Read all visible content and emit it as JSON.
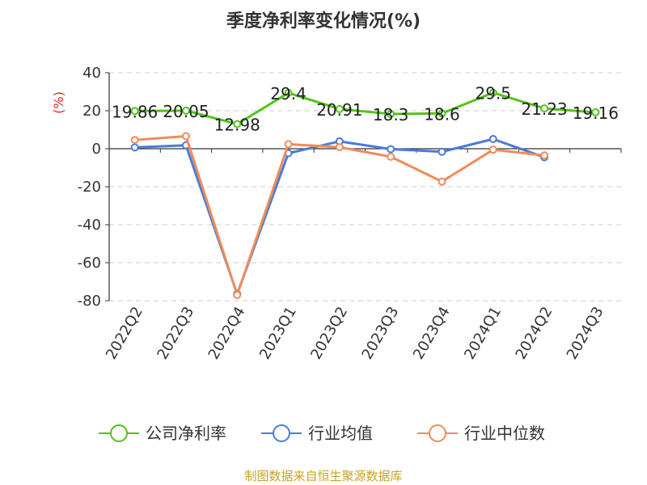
{
  "chart_data": {
    "type": "line",
    "title": "季度净利率变化情况(%)",
    "ylabel": "(%)",
    "categories": [
      "2022Q2",
      "2022Q3",
      "2022Q4",
      "2023Q1",
      "2023Q2",
      "2023Q3",
      "2023Q4",
      "2024Q1",
      "2024Q2",
      "2024Q3"
    ],
    "ylim": [
      -80,
      40
    ],
    "yticks": [
      40,
      20,
      0,
      -20,
      -40,
      -60,
      -80
    ],
    "grid": true,
    "legend_position": "bottom",
    "series": [
      {
        "name": "公司净利率",
        "color": "#52c41a",
        "values": [
          19.86,
          20.05,
          12.98,
          29.4,
          20.91,
          18.3,
          18.6,
          29.5,
          21.23,
          19.16
        ],
        "labels": [
          "19.86",
          "20.05",
          "12.98",
          "29.4",
          "20.91",
          "18.3",
          "18.6",
          "29.5",
          "21.23",
          "19.16"
        ]
      },
      {
        "name": "行业均值",
        "color": "#4a7bd9",
        "values": [
          0.7,
          1.8,
          -76.5,
          -2.4,
          3.9,
          -0.2,
          -1.6,
          5.1,
          -4.5,
          null
        ]
      },
      {
        "name": "行业中位数",
        "color": "#f08b5a",
        "values": [
          4.6,
          6.6,
          -77.0,
          2.4,
          0.8,
          -4.2,
          -17.3,
          -0.5,
          -3.5,
          null
        ]
      }
    ]
  },
  "source": "制图数据来自恒生聚源数据库"
}
